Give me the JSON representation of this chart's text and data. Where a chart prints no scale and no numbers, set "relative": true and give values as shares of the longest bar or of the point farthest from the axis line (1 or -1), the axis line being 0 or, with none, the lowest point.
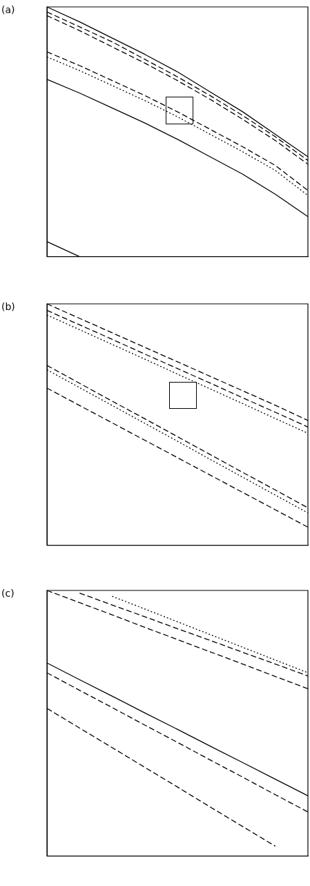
{
  "chart_data": [
    {
      "type": "line",
      "title": "(a)",
      "relative": true,
      "grid": false,
      "legend": false,
      "marker": "none",
      "categories": [
        null,
        null,
        null,
        null,
        null,
        null,
        null,
        null,
        null
      ],
      "series": [
        {
          "color": "#000000",
          "line_style": "solid",
          "values": [
            1,
            0.94,
            0.875,
            0.81,
            0.74,
            0.66,
            0.58,
            0.49,
            0.4
          ]
        },
        {
          "color": "#000000",
          "line_style": "dashed",
          "values": [
            0.98,
            0.92,
            0.86,
            0.79,
            0.72,
            0.645,
            0.565,
            0.48,
            0.385
          ]
        },
        {
          "color": "#000000",
          "line_style": "dashed",
          "values": [
            0.965,
            0.905,
            0.84,
            0.775,
            0.705,
            0.63,
            0.55,
            0.465,
            0.37
          ]
        },
        {
          "color": "#000000",
          "line_style": "dashed",
          "values": [
            0.82,
            0.765,
            0.705,
            0.645,
            0.58,
            0.51,
            0.44,
            0.365,
            0.265
          ]
        },
        {
          "color": "#000000",
          "line_style": "dotted",
          "values": [
            0.8,
            0.745,
            0.685,
            0.625,
            0.56,
            0.49,
            0.42,
            0.345,
            0.245
          ]
        },
        {
          "color": "#000000",
          "line_style": "solid",
          "values": [
            0.71,
            0.655,
            0.595,
            0.535,
            0.47,
            0.4,
            0.33,
            0.25,
            0.16
          ]
        },
        {
          "color": "#000000",
          "line_style": "solid",
          "values": [
            0.06,
            0,
            null,
            null,
            null,
            null,
            null,
            null,
            null
          ]
        }
      ]
    },
    {
      "type": "line",
      "title": "(b)",
      "relative": true,
      "grid": false,
      "legend": false,
      "marker": "none",
      "categories": [
        null,
        null,
        null,
        null,
        null,
        null,
        null,
        null,
        null
      ],
      "series": [
        {
          "color": "#000000",
          "line_style": "dashed",
          "values": [
            1,
            0.94,
            0.88,
            0.82,
            0.76,
            0.7,
            0.64,
            0.58,
            0.517
          ]
        },
        {
          "color": "#000000",
          "line_style": "dashed",
          "values": [
            0.973,
            0.913,
            0.853,
            0.792,
            0.732,
            0.672,
            0.611,
            0.551,
            0.49
          ]
        },
        {
          "color": "#000000",
          "line_style": "dotted",
          "values": [
            0.954,
            0.893,
            0.832,
            0.771,
            0.709,
            0.648,
            0.587,
            0.525,
            0.464
          ]
        },
        {
          "color": "#000000",
          "line_style": "dashed",
          "values": [
            0.745,
            0.671,
            0.597,
            0.524,
            0.45,
            0.376,
            0.302,
            0.229,
            0.155
          ]
        },
        {
          "color": "#000000",
          "line_style": "dotted",
          "values": [
            0.727,
            0.653,
            0.579,
            0.505,
            0.431,
            0.356,
            0.282,
            0.208,
            0.134
          ]
        },
        {
          "color": "#000000",
          "line_style": "dashed",
          "values": [
            0.651,
            0.579,
            0.507,
            0.435,
            0.363,
            0.291,
            0.219,
            0.147,
            0.075
          ]
        }
      ]
    },
    {
      "type": "line",
      "title": "(c)",
      "relative": true,
      "grid": false,
      "legend": false,
      "marker": "none",
      "categories": [
        null,
        null,
        null,
        null,
        null,
        null,
        null,
        null,
        null
      ],
      "series": [
        {
          "color": "#000000",
          "line_style": "dashed",
          "values": [
            1,
            0.954,
            0.908,
            0.861,
            0.815,
            0.769,
            0.723,
            0.676,
            0.63
          ]
        },
        {
          "color": "#000000",
          "line_style": "dashed",
          "values": [
            null,
            0.99,
            0.945,
            0.901,
            0.856,
            0.812,
            0.767,
            0.723,
            0.678
          ]
        },
        {
          "color": "#000000",
          "line_style": "dotted",
          "values": [
            null,
            null,
            0.978,
            0.93,
            0.882,
            0.834,
            0.786,
            0.738,
            0.69
          ]
        },
        {
          "color": "#000000",
          "line_style": "solid",
          "values": [
            0.727,
            0.664,
            0.602,
            0.539,
            0.477,
            0.414,
            0.352,
            0.289,
            0.227
          ]
        },
        {
          "color": "#000000",
          "line_style": "dashed",
          "values": [
            0.69,
            0.624,
            0.559,
            0.493,
            0.428,
            0.362,
            0.297,
            0.231,
            0.166
          ]
        },
        {
          "color": "#000000",
          "line_style": "dashed",
          "values": [
            0.556,
            0.482,
            0.408,
            0.334,
            0.26,
            0.185,
            0.111,
            0.037,
            null
          ]
        }
      ]
    }
  ]
}
